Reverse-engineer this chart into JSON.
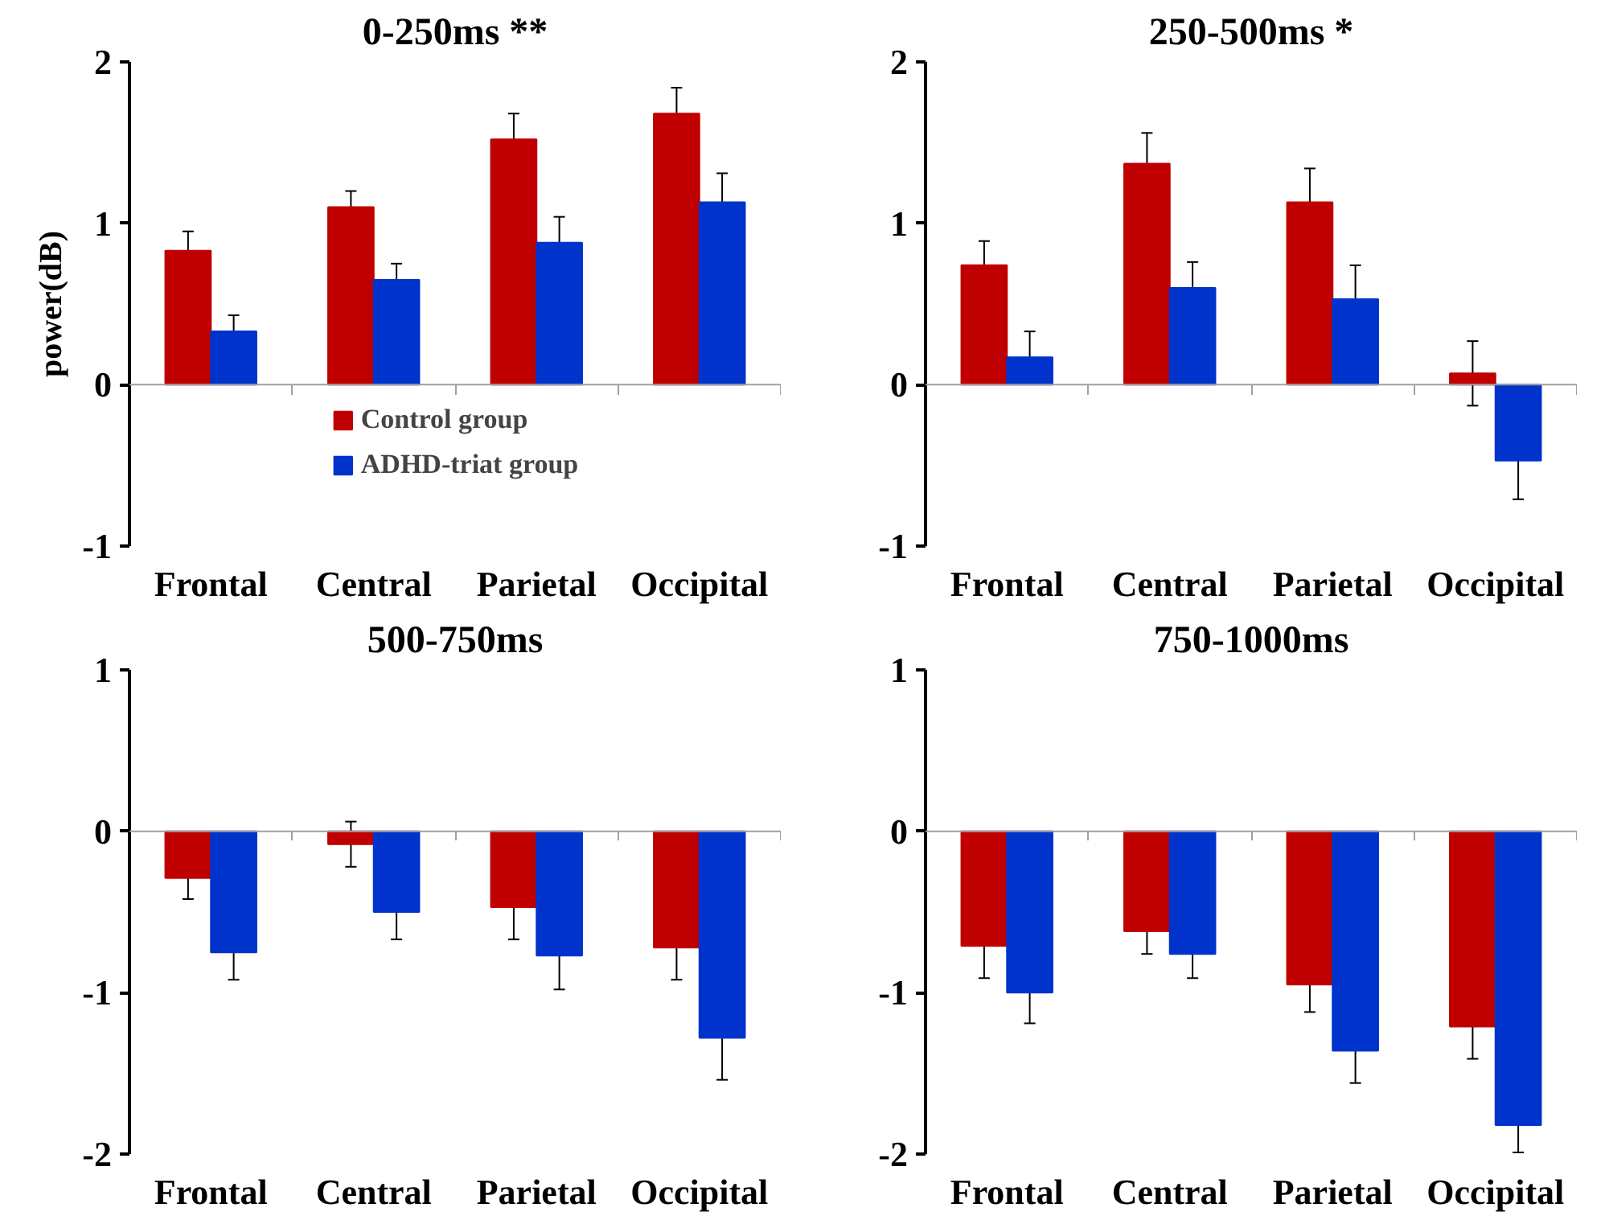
{
  "chart_data": [
    {
      "type": "bar",
      "title": "0-250ms **",
      "ylabel": "power(dB)",
      "categories": [
        "Frontal",
        "Central",
        "Parietal",
        "Occipital"
      ],
      "ylim": [
        -1,
        2
      ],
      "yticks": [
        -1,
        0,
        1,
        2
      ],
      "grid": false,
      "legend": "bottom",
      "ref_lines": [
        {
          "axis": "y",
          "value": 0,
          "color": "#a0a0a0"
        }
      ],
      "series": [
        {
          "name": "Control group",
          "color": "#c00000",
          "values": [
            0.83,
            1.1,
            1.52,
            1.68
          ],
          "errors": [
            0.12,
            0.1,
            0.16,
            0.16
          ]
        },
        {
          "name": "ADHD-triat group",
          "color": "#0033cc",
          "values": [
            0.33,
            0.65,
            0.88,
            1.13
          ],
          "errors": [
            0.1,
            0.1,
            0.16,
            0.18
          ]
        }
      ]
    },
    {
      "type": "bar",
      "title": "250-500ms *",
      "categories": [
        "Frontal",
        "Central",
        "Parietal",
        "Occipital"
      ],
      "ylim": [
        -1,
        2
      ],
      "yticks": [
        -1,
        0,
        1,
        2
      ],
      "grid": false,
      "ref_lines": [
        {
          "axis": "y",
          "value": 0,
          "color": "#a0a0a0"
        }
      ],
      "series": [
        {
          "color": "#c00000",
          "values": [
            0.74,
            1.37,
            1.13,
            0.07
          ],
          "errors": [
            0.15,
            0.19,
            0.21,
            0.2
          ]
        },
        {
          "color": "#0033cc",
          "values": [
            0.17,
            0.6,
            0.53,
            -0.47
          ],
          "errors": [
            0.16,
            0.16,
            0.21,
            0.24
          ]
        }
      ]
    },
    {
      "type": "bar",
      "title": "500-750ms",
      "categories": [
        "Frontal",
        "Central",
        "Parietal",
        "Occipital"
      ],
      "ylim": [
        -2,
        1
      ],
      "yticks": [
        -2,
        -1,
        0,
        1
      ],
      "grid": false,
      "ref_lines": [
        {
          "axis": "y",
          "value": 0,
          "color": "#a0a0a0"
        }
      ],
      "series": [
        {
          "color": "#c00000",
          "values": [
            -0.29,
            -0.08,
            -0.47,
            -0.72
          ],
          "errors": [
            0.13,
            0.14,
            0.2,
            0.2
          ]
        },
        {
          "color": "#0033cc",
          "values": [
            -0.75,
            -0.5,
            -0.77,
            -1.28
          ],
          "errors": [
            0.17,
            0.17,
            0.21,
            0.26
          ]
        }
      ]
    },
    {
      "type": "bar",
      "title": "750-1000ms",
      "categories": [
        "Frontal",
        "Central",
        "Parietal",
        "Occipital"
      ],
      "ylim": [
        -2,
        1
      ],
      "yticks": [
        -2,
        -1,
        0,
        1
      ],
      "grid": false,
      "ref_lines": [
        {
          "axis": "y",
          "value": 0,
          "color": "#a0a0a0"
        }
      ],
      "series": [
        {
          "color": "#c00000",
          "values": [
            -0.71,
            -0.62,
            -0.95,
            -1.21
          ],
          "errors": [
            0.2,
            0.14,
            0.17,
            0.2
          ]
        },
        {
          "color": "#0033cc",
          "values": [
            -1.0,
            -0.76,
            -1.36,
            -1.82
          ],
          "errors": [
            0.19,
            0.15,
            0.2,
            0.17
          ]
        }
      ]
    }
  ]
}
